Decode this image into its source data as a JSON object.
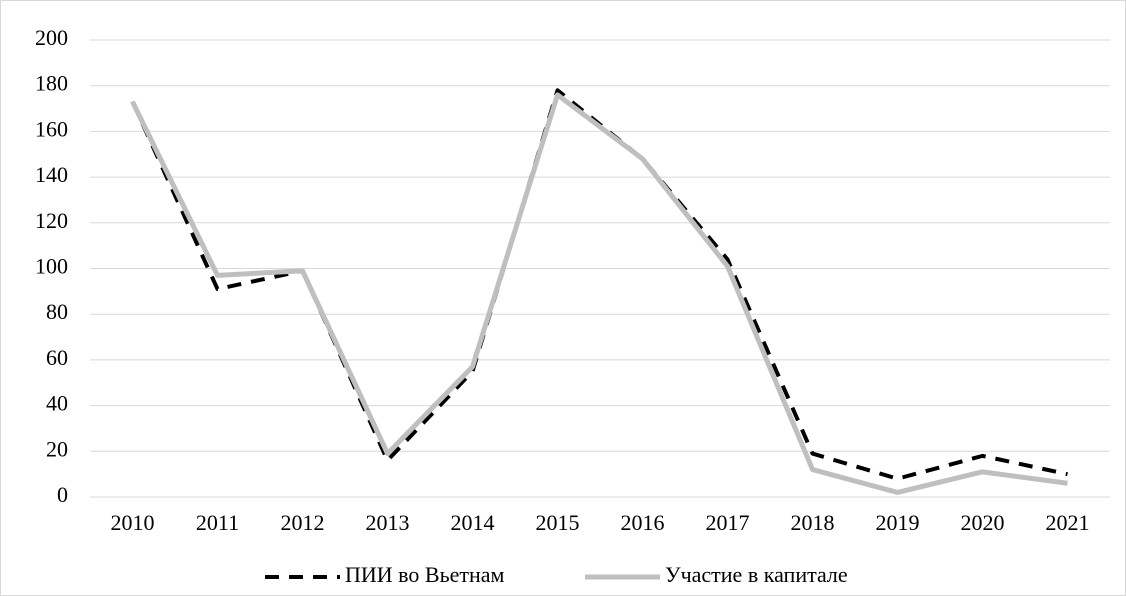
{
  "chart_data": {
    "type": "line",
    "categories": [
      "2010",
      "2011",
      "2012",
      "2013",
      "2014",
      "2015",
      "2016",
      "2017",
      "2018",
      "2019",
      "2020",
      "2021"
    ],
    "series": [
      {
        "name": "ПИИ во Вьетнам",
        "color": "#000000",
        "dash": true,
        "values": [
          173,
          91,
          99,
          16,
          55,
          178,
          148,
          104,
          19,
          8,
          18,
          10
        ]
      },
      {
        "name": "Участие в капитале",
        "color": "#bfbfbf",
        "dash": false,
        "values": [
          173,
          97,
          99,
          19,
          57,
          176,
          148,
          101,
          12,
          2,
          11,
          6
        ]
      }
    ],
    "ylim": [
      0,
      200
    ],
    "yticks": [
      0,
      20,
      40,
      60,
      80,
      100,
      120,
      140,
      160,
      180,
      200
    ],
    "grid": true,
    "legend": "bottom"
  }
}
